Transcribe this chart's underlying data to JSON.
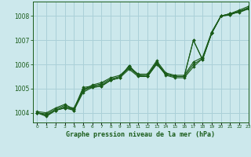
{
  "title": "Graphe pression niveau de la mer (hPa)",
  "background_color": "#cce8ec",
  "grid_color": "#aad0d8",
  "line_color": "#1a5c1a",
  "marker_color": "#1a5c1a",
  "xlim": [
    -0.5,
    23
  ],
  "ylim": [
    1003.6,
    1008.6
  ],
  "yticks": [
    1004,
    1005,
    1006,
    1007,
    1008
  ],
  "xticks": [
    0,
    1,
    2,
    3,
    4,
    5,
    6,
    7,
    8,
    9,
    10,
    11,
    12,
    13,
    14,
    15,
    16,
    17,
    18,
    19,
    20,
    21,
    22,
    23
  ],
  "series": [
    [
      1004.0,
      1003.85,
      1004.1,
      1004.2,
      1004.1,
      1004.85,
      1005.05,
      1005.1,
      1005.35,
      1005.45,
      1005.8,
      1005.5,
      1005.5,
      1006.05,
      1005.55,
      1005.45,
      1005.45,
      1005.9,
      1006.25,
      1007.3,
      1008.0,
      1008.1,
      1008.15,
      1008.3
    ],
    [
      1004.0,
      1003.9,
      1004.1,
      1004.2,
      1004.15,
      1004.9,
      1005.1,
      1005.2,
      1005.4,
      1005.5,
      1005.85,
      1005.55,
      1005.55,
      1006.1,
      1005.6,
      1005.5,
      1005.5,
      1006.0,
      1006.25,
      1007.3,
      1008.0,
      1008.1,
      1008.2,
      1008.35
    ],
    [
      1004.0,
      1003.9,
      1004.1,
      1004.25,
      1004.2,
      1004.95,
      1005.15,
      1005.25,
      1005.45,
      1005.55,
      1005.9,
      1005.6,
      1005.6,
      1006.15,
      1005.65,
      1005.55,
      1005.55,
      1006.1,
      1006.3,
      1007.35,
      1008.0,
      1008.1,
      1008.25,
      1008.4
    ],
    [
      1004.0,
      1003.95,
      1004.15,
      1004.3,
      1004.1,
      1005.0,
      1005.05,
      1005.1,
      1005.35,
      1005.45,
      1005.95,
      1005.55,
      1005.5,
      1006.05,
      1005.6,
      1005.5,
      1005.5,
      1007.0,
      1006.2,
      1007.3,
      1008.0,
      1008.05,
      1008.2,
      1008.3
    ],
    [
      1004.05,
      1004.0,
      1004.2,
      1004.35,
      1004.15,
      1005.05,
      1005.1,
      1005.15,
      1005.35,
      1005.45,
      1005.95,
      1005.55,
      1005.5,
      1006.0,
      1005.6,
      1005.5,
      1005.5,
      1007.0,
      1006.2,
      1007.3,
      1008.0,
      1008.05,
      1008.2,
      1008.3
    ]
  ]
}
